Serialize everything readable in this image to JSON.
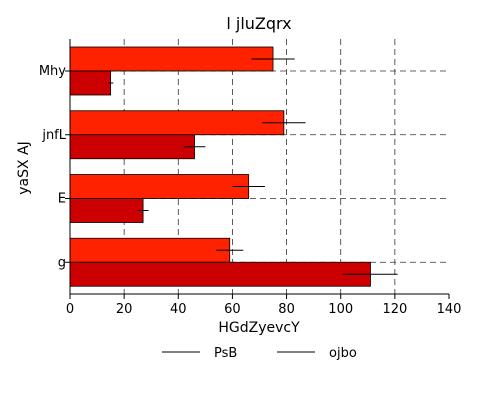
{
  "chart_data": {
    "type": "bar",
    "orientation": "horizontal",
    "title": "l jluZqrx",
    "xlabel": "HGdZyevcY",
    "ylabel": "yaSX AJ",
    "categories": [
      "Mhy",
      "jnfL",
      "E",
      "g"
    ],
    "xlim": [
      0,
      140
    ],
    "xticks": [
      0,
      20,
      40,
      60,
      80,
      100,
      120,
      140
    ],
    "grid": true,
    "legend_position": "bottom",
    "series": [
      {
        "name": "PsB",
        "color": "#ff2200",
        "values": [
          75,
          79,
          66,
          59
        ],
        "errors": [
          8,
          8,
          6,
          5
        ]
      },
      {
        "name": "ojbo",
        "color": "#cc0000",
        "values": [
          15,
          46,
          27,
          111
        ],
        "errors": [
          1,
          4,
          2,
          10
        ]
      }
    ]
  }
}
